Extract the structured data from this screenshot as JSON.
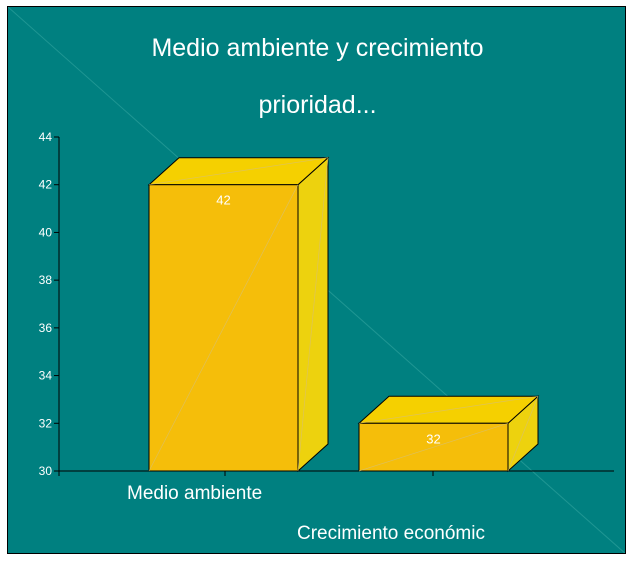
{
  "chart_data": {
    "type": "bar",
    "title_lines": [
      "Medio ambiente y crecimiento",
      "prioridad..."
    ],
    "categories": [
      "Medio ambiente",
      "Crecimiento económic"
    ],
    "values": [
      42,
      32
    ],
    "data_labels": [
      "42",
      "32"
    ],
    "ylim": [
      30,
      44
    ],
    "yticks": [
      30,
      32,
      34,
      36,
      38,
      40,
      42,
      44
    ],
    "ytick_labels": [
      "30",
      "32",
      "34",
      "36",
      "38",
      "40",
      "42",
      "44"
    ],
    "three_d": true,
    "grid": false,
    "legend": "none"
  },
  "colors": {
    "background": "#008080",
    "bar_front": "#F5BE0A",
    "bar_top": "#F5D000",
    "bar_side": "#EDD20E",
    "bar_outline": "#000000",
    "text": "#FFFFFF",
    "axis": "#000000"
  }
}
